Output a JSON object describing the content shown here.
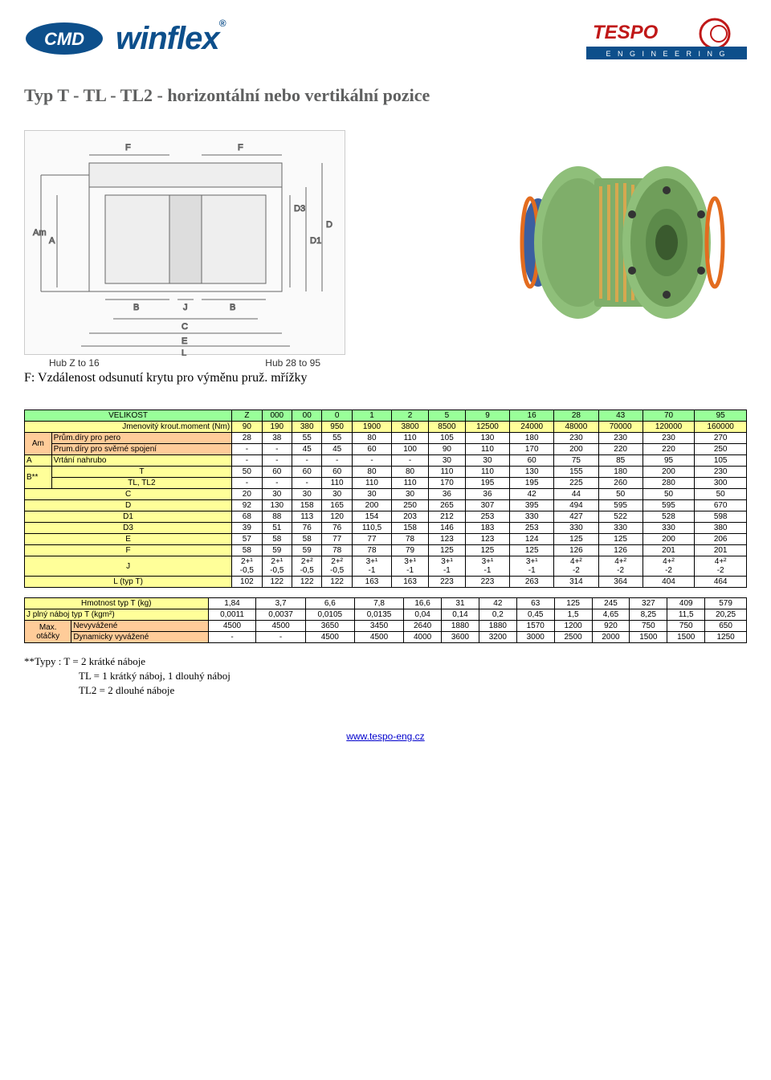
{
  "header": {
    "brand1": "CMD",
    "brand2": "winflex",
    "brand2_suffix": "®",
    "brand3_top": "TESPO",
    "brand3_sub": "E N G I N E E R I N G"
  },
  "title": "Typ T - TL - TL2 - horizontální nebo vertikální pozice",
  "diagram": {
    "hub_left_label": "Hub Z to 16",
    "hub_right_label": "Hub 28 to 95"
  },
  "caption": "F: Vzdálenost odsunutí krytu pro výměnu pruž. mřížky",
  "table1": {
    "row_labels": {
      "velikost": "VELIKOST",
      "moment": "Jmenovitý krout.moment (Nm)",
      "am": "Am",
      "pero": "Prům.díry pro pero",
      "sverne": "Prum.díry pro svěrné spojení",
      "vrtani_lbl": "Vrtání nahrubo",
      "a": "A",
      "bstar": "B**",
      "t": "T",
      "tltl2": "TL, TL2",
      "c": "C",
      "d": "D",
      "d1": "D1",
      "d3": "D3",
      "e": "E",
      "f": "F",
      "j": "J",
      "ltypt": "L (typ T)"
    },
    "sizes": [
      "Z",
      "000",
      "00",
      "0",
      "1",
      "2",
      "5",
      "9",
      "16",
      "28",
      "43",
      "70",
      "95"
    ],
    "moment": [
      "90",
      "190",
      "380",
      "950",
      "1900",
      "3800",
      "8500",
      "12500",
      "24000",
      "48000",
      "70000",
      "120000",
      "160000"
    ],
    "pero": [
      "28",
      "38",
      "55",
      "55",
      "80",
      "110",
      "105",
      "130",
      "180",
      "230",
      "230",
      "230",
      "270"
    ],
    "sverne": [
      "-",
      "-",
      "45",
      "45",
      "60",
      "100",
      "90",
      "110",
      "170",
      "200",
      "220",
      "220",
      "250"
    ],
    "vrtani": [
      "-",
      "-",
      "-",
      "-",
      "-",
      "-",
      "30",
      "30",
      "60",
      "75",
      "85",
      "95",
      "105"
    ],
    "t_row": [
      "50",
      "60",
      "60",
      "60",
      "80",
      "80",
      "110",
      "110",
      "130",
      "155",
      "180",
      "200",
      "230"
    ],
    "tltl2": [
      "-",
      "-",
      "-",
      "110",
      "110",
      "110",
      "170",
      "195",
      "195",
      "225",
      "260",
      "280",
      "300"
    ],
    "c": [
      "20",
      "30",
      "30",
      "30",
      "30",
      "30",
      "36",
      "36",
      "42",
      "44",
      "50",
      "50",
      "50"
    ],
    "d": [
      "92",
      "130",
      "158",
      "165",
      "200",
      "250",
      "265",
      "307",
      "395",
      "494",
      "595",
      "595",
      "670"
    ],
    "d1": [
      "68",
      "88",
      "113",
      "120",
      "154",
      "203",
      "212",
      "253",
      "330",
      "427",
      "522",
      "528",
      "598"
    ],
    "d3": [
      "39",
      "51",
      "76",
      "76",
      "110,5",
      "158",
      "146",
      "183",
      "253",
      "330",
      "330",
      "330",
      "380"
    ],
    "e": [
      "57",
      "58",
      "58",
      "77",
      "77",
      "78",
      "123",
      "123",
      "124",
      "125",
      "125",
      "200",
      "206"
    ],
    "f": [
      "58",
      "59",
      "59",
      "78",
      "78",
      "79",
      "125",
      "125",
      "125",
      "126",
      "126",
      "201",
      "201"
    ],
    "j_top": [
      "2+¹",
      "2+¹",
      "2+²",
      "2+²",
      "3+¹",
      "3+¹",
      "3+¹",
      "3+¹",
      "3+¹",
      "4+²",
      "4+²",
      "4+²",
      "4+²"
    ],
    "j_bot": [
      "-0,5",
      "-0,5",
      "-0,5",
      "-0,5",
      "-1",
      "-1",
      "-1",
      "-1",
      "-1",
      "-2",
      "-2",
      "-2",
      "-2"
    ],
    "ltypt": [
      "102",
      "122",
      "122",
      "122",
      "163",
      "163",
      "223",
      "223",
      "263",
      "314",
      "364",
      "404",
      "464"
    ]
  },
  "table2": {
    "labels": {
      "mass": "Hmotnost typ T (kg)",
      "jplny": "J plný náboj typ T (kgm²)",
      "max": "Max.",
      "otacky": "otáčky",
      "nevyv": "Nevyvážené",
      "dynv": "Dynamicky vyvážené"
    },
    "mass": [
      "1,84",
      "3,7",
      "6,6",
      "7,8",
      "16,6",
      "31",
      "42",
      "63",
      "125",
      "245",
      "327",
      "409",
      "579"
    ],
    "jplny": [
      "0,0011",
      "0,0037",
      "0,0105",
      "0,0135",
      "0,04",
      "0,14",
      "0,2",
      "0,45",
      "1,5",
      "4,65",
      "8,25",
      "11,5",
      "20,25"
    ],
    "nevyv": [
      "4500",
      "4500",
      "3650",
      "3450",
      "2640",
      "1880",
      "1880",
      "1570",
      "1200",
      "920",
      "750",
      "750",
      "650"
    ],
    "dynv": [
      "-",
      "-",
      "4500",
      "4500",
      "4000",
      "3600",
      "3200",
      "3000",
      "2500",
      "2000",
      "1500",
      "1500",
      "1250"
    ]
  },
  "footer_notes": {
    "line1": "**Typy :  T = 2 krátké náboje",
    "line2": "TL = 1 krátký náboj, 1 dlouhý náboj",
    "line3": "TL2 = 2 dlouhé náboje"
  },
  "footer_url": "www.tespo-eng.cz",
  "colors": {
    "hdr_green": "#99ff99",
    "hdr_yellow": "#ffff99",
    "hdr_orange": "#ffcc99"
  }
}
